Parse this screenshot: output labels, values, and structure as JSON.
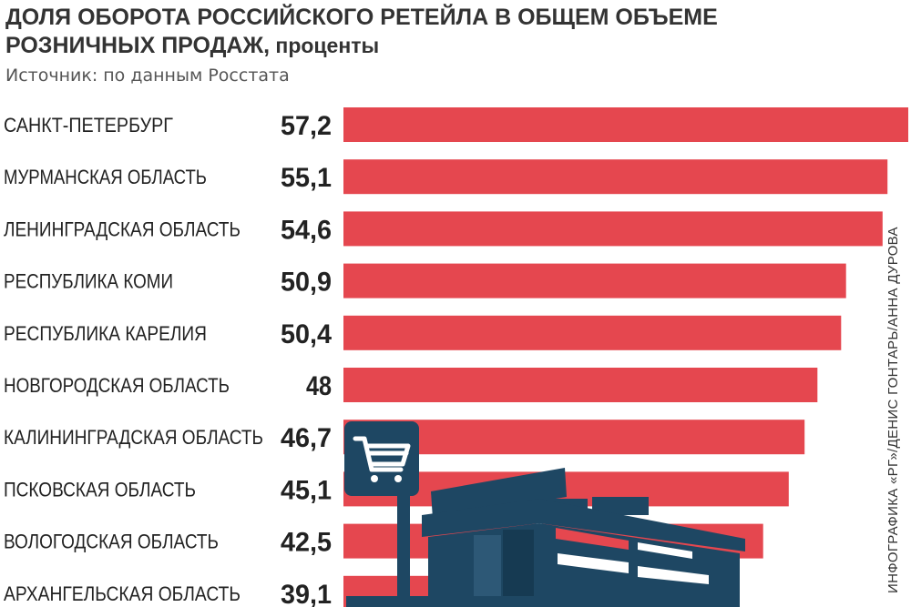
{
  "title_main": "ДОЛЯ ОБОРОТА РОССИЙСКОГО РЕТЕЙЛА В ОБЩЕМ ОБЪЕМЕ РОЗНИЧНЫХ ПРОДАЖ,",
  "title_unit": " проценты",
  "source": "Источник: по данным Росстата",
  "credit": "ИНФОГРАФИКА «РГ»/ДЕНИС ГОНТАРЬ/АННА ДУРОВА",
  "colors": {
    "bar": "#e5474f",
    "illustration": "#1e4763"
  },
  "chart_data": {
    "type": "bar",
    "orientation": "horizontal",
    "title": "ДОЛЯ ОБОРОТА РОССИЙСКОГО РЕТЕЙЛА В ОБЩЕМ ОБЪЕМЕ РОЗНИЧНЫХ ПРОДАЖ, проценты",
    "categories": [
      "САНКТ-ПЕТЕРБУРГ",
      "МУРМАНСКАЯ ОБЛАСТЬ",
      "ЛЕНИНГРАДСКАЯ ОБЛАСТЬ",
      "РЕСПУБЛИКА КОМИ",
      "РЕСПУБЛИКА КАРЕЛИЯ",
      "НОВГОРОДСКАЯ ОБЛАСТЬ",
      "КАЛИНИНГРАДСКАЯ ОБЛАСТЬ",
      "ПСКОВСКАЯ ОБЛАСТЬ",
      "ВОЛОГОДСКАЯ ОБЛАСТЬ",
      "АРХАНГЕЛЬСКАЯ ОБЛАСТЬ"
    ],
    "values": [
      57.2,
      55.1,
      54.6,
      50.9,
      50.4,
      48,
      46.7,
      45.1,
      42.5,
      39.1
    ],
    "value_labels": [
      "57,2",
      "55,1",
      "54,6",
      "50,9",
      "50,4",
      "48",
      "46,7",
      "45,1",
      "42,5",
      "39,1"
    ],
    "grid": false,
    "legend": "none"
  }
}
